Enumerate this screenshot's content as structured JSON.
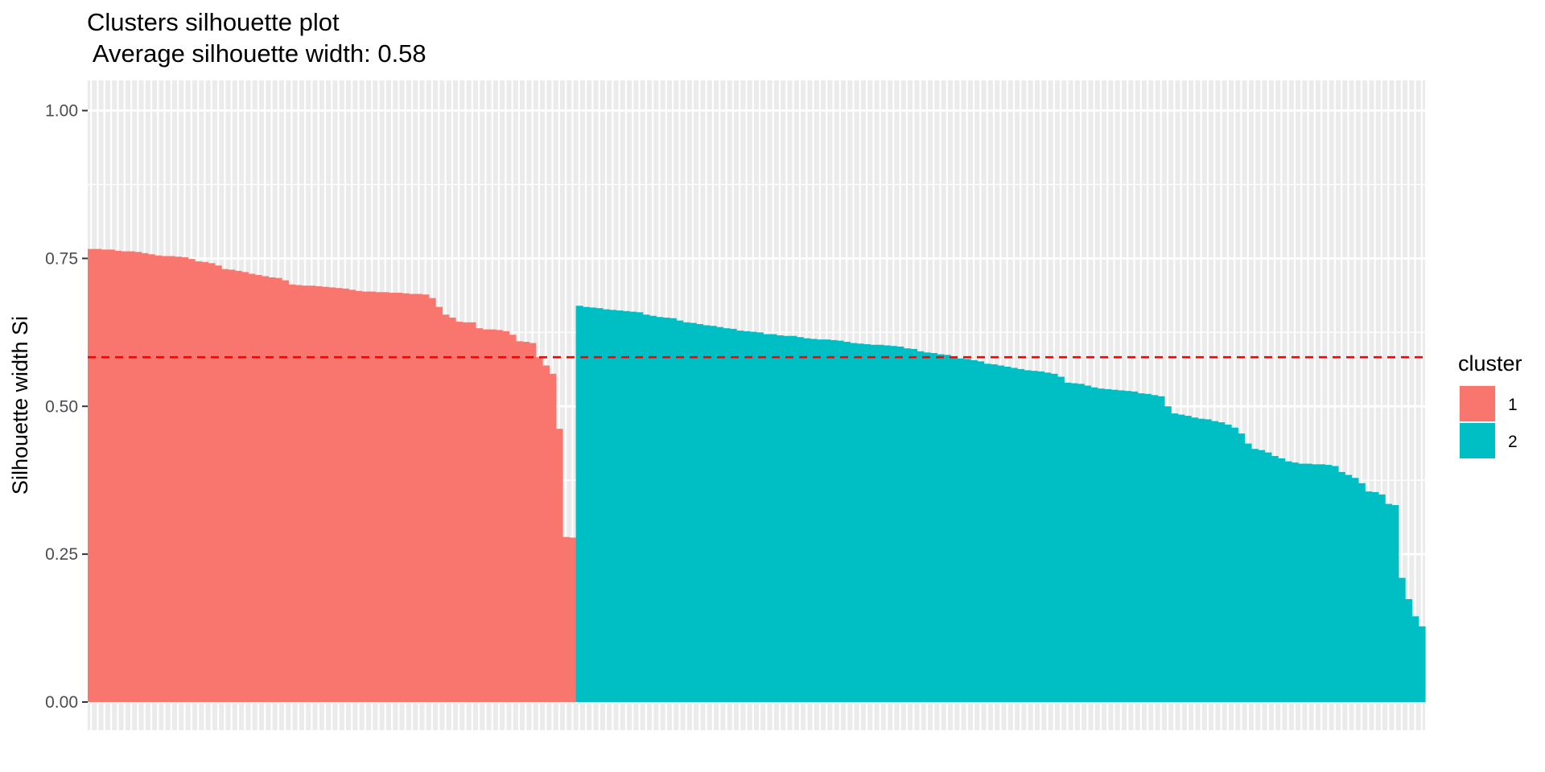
{
  "chart_data": {
    "type": "bar",
    "title": "Clusters silhouette plot",
    "subtitle": " Average silhouette width: 0.58",
    "xlabel": "",
    "ylabel": "Silhouette width Si",
    "ylim": [
      0,
      1.05
    ],
    "yticks": [
      {
        "value": 0,
        "label": "0.00"
      },
      {
        "value": 0.25,
        "label": "0.25"
      },
      {
        "value": 0.5,
        "label": "0.50"
      },
      {
        "value": 0.75,
        "label": "0.75"
      },
      {
        "value": 1,
        "label": "1.00"
      }
    ],
    "grid": true,
    "average_line": {
      "value": 0.583,
      "color": "#FF0000",
      "style": "dashed"
    },
    "legend": {
      "title": "cluster",
      "position": "right",
      "entries": [
        {
          "label": "1",
          "color": "#F8766D"
        },
        {
          "label": "2",
          "color": "#00BFC4"
        }
      ]
    },
    "series": [
      {
        "color": "#F8766D",
        "values": [
          0.766,
          0.766,
          0.765,
          0.765,
          0.763,
          0.762,
          0.762,
          0.761,
          0.759,
          0.757,
          0.755,
          0.754,
          0.754,
          0.753,
          0.752,
          0.749,
          0.745,
          0.744,
          0.742,
          0.738,
          0.732,
          0.731,
          0.729,
          0.727,
          0.724,
          0.722,
          0.72,
          0.718,
          0.717,
          0.713,
          0.706,
          0.705,
          0.704,
          0.704,
          0.703,
          0.702,
          0.701,
          0.7,
          0.699,
          0.697,
          0.695,
          0.694,
          0.694,
          0.693,
          0.693,
          0.692,
          0.692,
          0.691,
          0.69,
          0.69,
          0.689,
          0.683,
          0.668,
          0.655,
          0.65,
          0.643,
          0.642,
          0.642,
          0.632,
          0.63,
          0.63,
          0.629,
          0.627,
          0.621,
          0.61,
          0.609,
          0.607,
          0.583,
          0.569,
          0.555,
          0.462,
          0.279,
          0.278
        ]
      },
      {
        "color": "#00BFC4",
        "values": [
          0.67,
          0.668,
          0.667,
          0.666,
          0.664,
          0.663,
          0.662,
          0.661,
          0.66,
          0.659,
          0.655,
          0.653,
          0.651,
          0.65,
          0.649,
          0.645,
          0.642,
          0.641,
          0.639,
          0.637,
          0.636,
          0.634,
          0.632,
          0.631,
          0.628,
          0.627,
          0.626,
          0.625,
          0.622,
          0.622,
          0.62,
          0.619,
          0.619,
          0.617,
          0.615,
          0.614,
          0.613,
          0.613,
          0.612,
          0.611,
          0.609,
          0.607,
          0.606,
          0.605,
          0.604,
          0.604,
          0.603,
          0.602,
          0.601,
          0.598,
          0.597,
          0.593,
          0.591,
          0.59,
          0.588,
          0.587,
          0.584,
          0.581,
          0.58,
          0.578,
          0.576,
          0.572,
          0.571,
          0.569,
          0.567,
          0.565,
          0.563,
          0.561,
          0.56,
          0.559,
          0.557,
          0.555,
          0.55,
          0.54,
          0.539,
          0.538,
          0.535,
          0.532,
          0.53,
          0.529,
          0.528,
          0.527,
          0.526,
          0.525,
          0.522,
          0.521,
          0.519,
          0.517,
          0.5,
          0.488,
          0.486,
          0.484,
          0.481,
          0.479,
          0.478,
          0.475,
          0.473,
          0.469,
          0.464,
          0.454,
          0.437,
          0.428,
          0.426,
          0.422,
          0.416,
          0.412,
          0.407,
          0.405,
          0.403,
          0.403,
          0.402,
          0.402,
          0.401,
          0.399,
          0.389,
          0.384,
          0.379,
          0.37,
          0.356,
          0.355,
          0.351,
          0.335,
          0.333,
          0.21,
          0.174,
          0.145,
          0.128
        ]
      }
    ]
  }
}
